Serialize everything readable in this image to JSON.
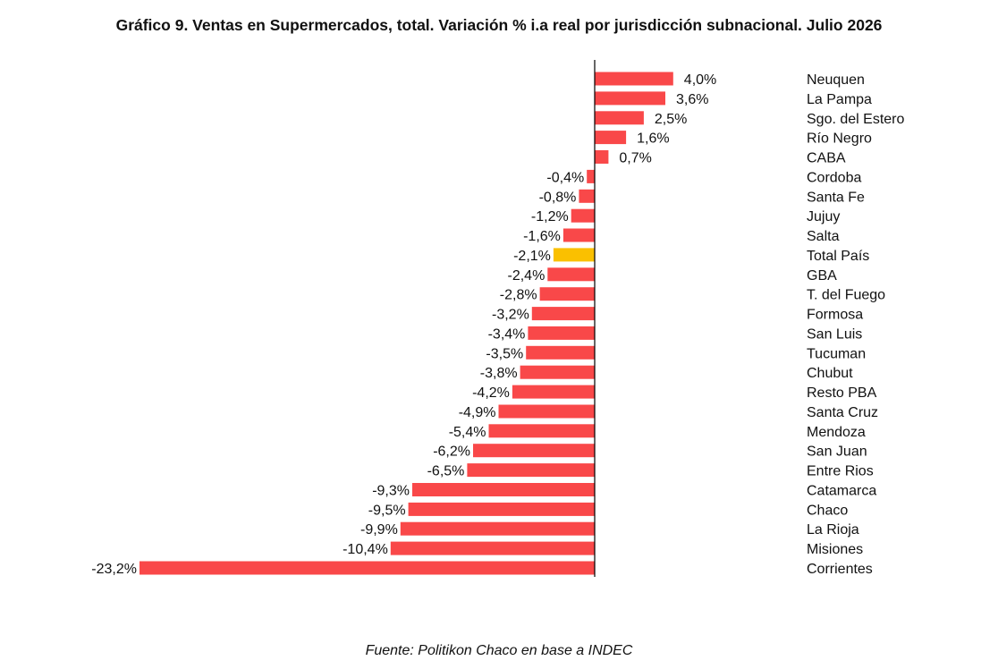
{
  "chart_data": {
    "type": "bar",
    "orientation": "horizontal",
    "title": "Gráfico 9. Ventas en Supermercados, total. Variación % i.a real por jurisdicción subnacional. Julio 2026",
    "categories": [
      "Neuquen",
      "La Pampa",
      "Sgo. del Estero",
      "Río Negro",
      "CABA",
      "Cordoba",
      "Santa Fe",
      "Jujuy",
      "Salta",
      "Total País",
      "GBA",
      "T. del Fuego",
      "Formosa",
      "San Luis",
      "Tucuman",
      "Chubut",
      "Resto PBA",
      "Santa Cruz",
      "Mendoza",
      "San Juan",
      "Entre Rios",
      "Catamarca",
      "Chaco",
      "La Rioja",
      "Misiones",
      "Corrientes"
    ],
    "values": [
      4.0,
      3.6,
      2.5,
      1.6,
      0.7,
      -0.4,
      -0.8,
      -1.2,
      -1.6,
      -2.1,
      -2.4,
      -2.8,
      -3.2,
      -3.4,
      -3.5,
      -3.8,
      -4.2,
      -4.9,
      -5.4,
      -6.2,
      -6.5,
      -9.3,
      -9.5,
      -9.9,
      -10.4,
      -23.2
    ],
    "value_labels": [
      "4,0%",
      "3,6%",
      "2,5%",
      "1,6%",
      "0,7%",
      "-0,4%",
      "-0,8%",
      "-1,2%",
      "-1,6%",
      "-2,1%",
      "-2,4%",
      "-2,8%",
      "-3,2%",
      "-3,4%",
      "-3,5%",
      "-3,8%",
      "-4,2%",
      "-4,9%",
      "-5,4%",
      "-6,2%",
      "-6,5%",
      "-9,3%",
      "-9,5%",
      "-9,9%",
      "-10,4%",
      "-23,2%"
    ],
    "highlight_category": "Total País",
    "colors": {
      "bar": "#f94849",
      "highlight": "#fac000",
      "axis": "#000000"
    },
    "xlabel": "",
    "ylabel": "",
    "xlim": [
      -23.2,
      4.0
    ],
    "grid": false,
    "legend": "none"
  },
  "source_note": "Fuente: Politikon Chaco en base a INDEC"
}
